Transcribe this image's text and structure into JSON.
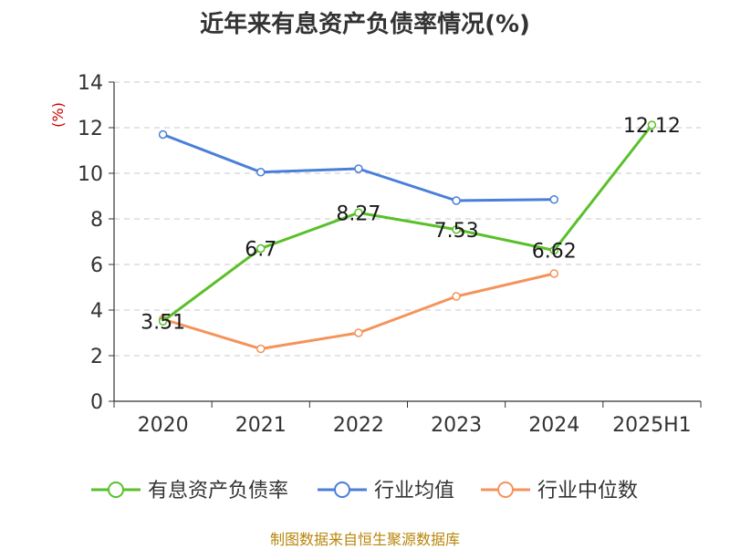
{
  "chart_data": {
    "type": "line",
    "title": "近年来有息资产负债率情况(%)",
    "ylabel": "(%)",
    "xlabel": "",
    "categories": [
      "2020",
      "2021",
      "2022",
      "2023",
      "2024",
      "2025H1"
    ],
    "ylim": [
      0,
      14
    ],
    "yticks": [
      0,
      2,
      4,
      6,
      8,
      10,
      12,
      14
    ],
    "grid": true,
    "legend_position": "bottom",
    "series": [
      {
        "name": "有息资产负债率",
        "color": "#5ac02a",
        "values": [
          3.51,
          6.7,
          8.27,
          7.53,
          6.62,
          12.12
        ],
        "labels": [
          "3.51",
          "6.7",
          "8.27",
          "7.53",
          "6.62",
          "12.12"
        ]
      },
      {
        "name": "行业均值",
        "color": "#4a7fd8",
        "values": [
          11.7,
          10.05,
          10.2,
          8.8,
          8.85,
          null
        ]
      },
      {
        "name": "行业中位数",
        "color": "#f5935a",
        "values": [
          3.6,
          2.3,
          3.0,
          4.6,
          5.6,
          null
        ]
      }
    ]
  },
  "source": "制图数据来自恒生聚源数据库"
}
